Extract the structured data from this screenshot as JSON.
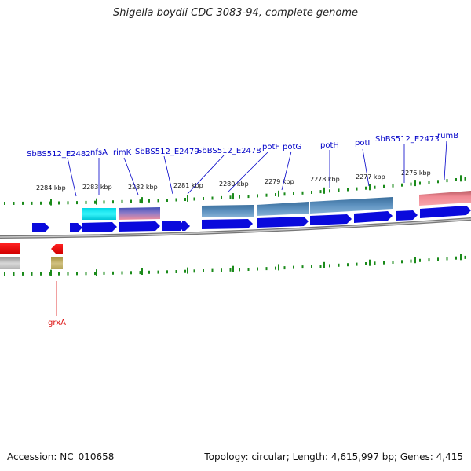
{
  "title": "Shigella boydii CDC 3083-94, complete genome",
  "footer": {
    "accession": "Accession: NC_010658",
    "genome_info": "Topology: circular; Length: 4,615,997 bp; Genes: 4,415"
  },
  "colors": {
    "forward_gene": "#0a0adc",
    "forward_label": "#0000c8",
    "reverse_gene": "#ee1111",
    "reverse_label": "#dd1111",
    "tick": "#1a8a1a",
    "backbone": "#8e8e8e"
  },
  "scale": {
    "unit": "kbp",
    "tick_labels": [
      "2284 kbp",
      "2283 kbp",
      "2282 kbp",
      "2281 kbp",
      "2280 kbp",
      "2279 kbp",
      "2278 kbp",
      "2277 kbp",
      "2276 kbp"
    ]
  },
  "genes": {
    "forward": [
      {
        "label": "SbBS512_E2482"
      },
      {
        "label": "nfsA"
      },
      {
        "label": "rimK"
      },
      {
        "label": "SbBS512_E2479"
      },
      {
        "label": "SbBS512_E2478"
      },
      {
        "label": "potF"
      },
      {
        "label": "potG"
      },
      {
        "label": "potH"
      },
      {
        "label": "potI"
      },
      {
        "label": "SbBS512_E2473"
      },
      {
        "label": "rumB"
      }
    ],
    "reverse": [
      {
        "label": "grxA"
      }
    ]
  }
}
